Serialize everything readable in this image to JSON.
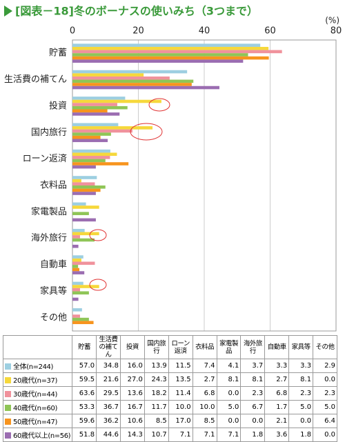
{
  "chart_data": {
    "type": "bar",
    "orientation": "horizontal",
    "title": "[図表－18]冬のボーナスの使いみち（3つまで）",
    "unit": "(%)",
    "categories": [
      "貯蓄",
      "生活費の補てん",
      "投資",
      "国内旅行",
      "ローン返済",
      "衣料品",
      "家電製品",
      "海外旅行",
      "自動車",
      "家具等",
      "その他"
    ],
    "xlim": [
      0,
      80
    ],
    "xticks": [
      0,
      20,
      40,
      60,
      80
    ],
    "grid": true,
    "series": [
      {
        "name": "全体(n=244)",
        "color": "#9dcfe1",
        "values": [
          57.0,
          34.8,
          16.0,
          13.9,
          11.5,
          7.4,
          4.1,
          3.7,
          3.3,
          3.3,
          2.9
        ],
        "value_labels": [
          "57.0",
          "34.8",
          "16.0",
          "13.9",
          "11.5",
          "7.4",
          "4.1",
          "3.7",
          "3.3",
          "3.3",
          "2.9"
        ]
      },
      {
        "name": "20歳代(n=37)",
        "color": "#f6d83b",
        "values": [
          59.5,
          21.6,
          27.0,
          24.3,
          13.5,
          2.7,
          8.1,
          8.1,
          2.7,
          8.1,
          0.0
        ],
        "value_labels": [
          "59.5",
          "21.6",
          "27.0",
          "24.3",
          "13.5",
          "2.7",
          "8.1",
          "8.1",
          "2.7",
          "8.1",
          "0.0"
        ]
      },
      {
        "name": "30歳代(n=44)",
        "color": "#f0929c",
        "values": [
          63.6,
          29.5,
          13.6,
          18.2,
          11.4,
          6.8,
          0.0,
          2.3,
          6.8,
          2.3,
          2.3
        ],
        "value_labels": [
          "63.6",
          "29.5",
          "13.6",
          "18.2",
          "11.4",
          "6.8",
          "0.0",
          "2.3",
          "6.8",
          "2.3",
          "2.3"
        ]
      },
      {
        "name": "40歳代(n=60)",
        "color": "#8fc557",
        "values": [
          53.3,
          36.7,
          16.7,
          11.7,
          10.0,
          10.0,
          5.0,
          6.7,
          1.7,
          5.0,
          5.0
        ],
        "value_labels": [
          "53.3",
          "36.7",
          "16.7",
          "11.7",
          "10.0",
          "10.0",
          "5.0",
          "6.7",
          "1.7",
          "5.0",
          "5.0"
        ]
      },
      {
        "name": "50歳代(n=47)",
        "color": "#f7941e",
        "values": [
          59.6,
          36.2,
          10.6,
          8.5,
          17.0,
          8.5,
          0.0,
          0.0,
          2.1,
          0.0,
          6.4
        ],
        "value_labels": [
          "59.6",
          "36.2",
          "10.6",
          "8.5",
          "17.0",
          "8.5",
          "0.0",
          "0.0",
          "2.1",
          "0.0",
          "6.4"
        ]
      },
      {
        "name": "60歳代以上(n=56)",
        "color": "#9b6db1",
        "values": [
          51.8,
          44.6,
          14.3,
          10.7,
          7.1,
          7.1,
          7.1,
          1.8,
          3.6,
          1.8,
          0.0
        ],
        "value_labels": [
          "51.8",
          "44.6",
          "14.3",
          "10.7",
          "7.1",
          "7.1",
          "7.1",
          "1.8",
          "3.6",
          "1.8",
          "0.0"
        ]
      }
    ]
  }
}
